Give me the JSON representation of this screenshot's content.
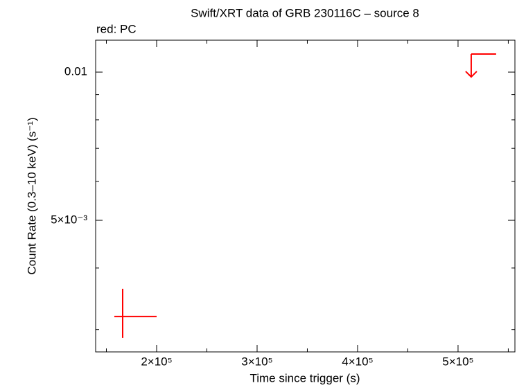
{
  "chart_data": {
    "type": "lightcurve",
    "title": "Swift/XRT data of GRB 230116C – source 8",
    "subtitle": "red: PC",
    "x_label": "Time since trigger (s)",
    "y_label": "Count Rate (0.3–10 keV) (s⁻¹)",
    "log_y": true,
    "xlim": [
      139300,
      556600
    ],
    "ylim": [
      0.002702,
      0.01161
    ],
    "xticks": [
      {
        "value": 200000,
        "label": "2×10⁵"
      },
      {
        "value": 300000,
        "label": "3×10⁵"
      },
      {
        "value": 400000,
        "label": "4×10⁵"
      },
      {
        "value": 500000,
        "label": "5×10⁵"
      }
    ],
    "xminorticks": [
      150000,
      250000,
      350000,
      450000,
      550000
    ],
    "yticks": [
      {
        "value": 0.005,
        "label": "5×10⁻³"
      },
      0.01
    ],
    "yminorticks": [
      0.003,
      0.004,
      0.006,
      0.007,
      0.008,
      0.009
    ],
    "series": [
      {
        "name": "PC",
        "color": "#ff0000",
        "x": [
          166200
        ],
        "xerr_low": [
          8300
        ],
        "xerr_high": [
          33800
        ],
        "values": [
          0.003189
        ],
        "yerr_low": [
          0.000305
        ],
        "yerr_high": [
          0.000441
        ],
        "upper_limits": {
          "x_start": [
            513100
          ],
          "x_end": [
            537900
          ],
          "values": [
            0.01088
          ]
        }
      }
    ]
  }
}
